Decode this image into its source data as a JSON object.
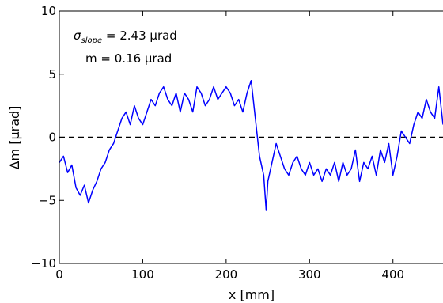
{
  "chart_data": {
    "type": "line",
    "title": "",
    "xlabel": "x [mm]",
    "ylabel": "Δm [μrad]",
    "xlim": [
      0,
      460
    ],
    "ylim": [
      -10,
      10
    ],
    "x_ticks": [
      0,
      100,
      200,
      300,
      400
    ],
    "y_ticks": [
      -10,
      -5,
      0,
      5,
      10
    ],
    "x_tick_labels": [
      "0",
      "100",
      "200",
      "300",
      "400"
    ],
    "y_tick_labels": [
      "−10",
      "−5",
      "0",
      "5",
      "10"
    ],
    "grid": false,
    "reference_line": {
      "y": 0,
      "style": "dashed",
      "color": "#000000"
    },
    "annotations": [
      {
        "id": "sigma",
        "sym": "σ",
        "sub": "slope",
        "text": " = 2.43 μrad"
      },
      {
        "id": "mean",
        "text": "m = 0.16 μrad"
      }
    ],
    "series": [
      {
        "color": "#0000ff",
        "x": [
          0,
          5,
          10,
          15,
          20,
          25,
          30,
          35,
          40,
          45,
          50,
          55,
          60,
          65,
          70,
          75,
          80,
          85,
          90,
          95,
          100,
          105,
          110,
          115,
          120,
          125,
          130,
          135,
          140,
          145,
          150,
          155,
          160,
          165,
          170,
          175,
          180,
          185,
          190,
          195,
          200,
          205,
          210,
          215,
          220,
          225,
          230,
          235,
          240,
          245,
          248,
          250,
          255,
          260,
          265,
          270,
          275,
          280,
          285,
          290,
          295,
          300,
          305,
          310,
          315,
          320,
          325,
          330,
          335,
          340,
          345,
          350,
          355,
          360,
          365,
          370,
          375,
          380,
          385,
          390,
          395,
          400,
          405,
          410,
          415,
          420,
          425,
          430,
          435,
          440,
          445,
          450,
          455,
          460
        ],
        "y": [
          -2.0,
          -1.5,
          -2.8,
          -2.2,
          -4.0,
          -4.6,
          -3.8,
          -5.2,
          -4.2,
          -3.5,
          -2.5,
          -2.0,
          -1.0,
          -0.5,
          0.5,
          1.5,
          2.0,
          1.0,
          2.5,
          1.5,
          1.0,
          2.0,
          3.0,
          2.5,
          3.5,
          4.0,
          3.0,
          2.5,
          3.5,
          2.0,
          3.5,
          3.0,
          2.0,
          4.0,
          3.5,
          2.5,
          3.0,
          4.0,
          3.0,
          3.5,
          4.0,
          3.5,
          2.5,
          3.0,
          2.0,
          3.5,
          4.5,
          1.5,
          -1.5,
          -3.0,
          -5.8,
          -3.5,
          -2.0,
          -0.5,
          -1.5,
          -2.5,
          -3.0,
          -2.0,
          -1.5,
          -2.5,
          -3.0,
          -2.0,
          -3.0,
          -2.5,
          -3.5,
          -2.5,
          -3.0,
          -2.0,
          -3.5,
          -2.0,
          -3.0,
          -2.5,
          -1.0,
          -3.5,
          -2.0,
          -2.5,
          -1.5,
          -3.0,
          -1.0,
          -2.0,
          -0.5,
          -3.0,
          -1.5,
          0.5,
          0.0,
          -0.5,
          1.0,
          2.0,
          1.5,
          3.0,
          2.0,
          1.5,
          4.0,
          1.0
        ]
      }
    ]
  }
}
